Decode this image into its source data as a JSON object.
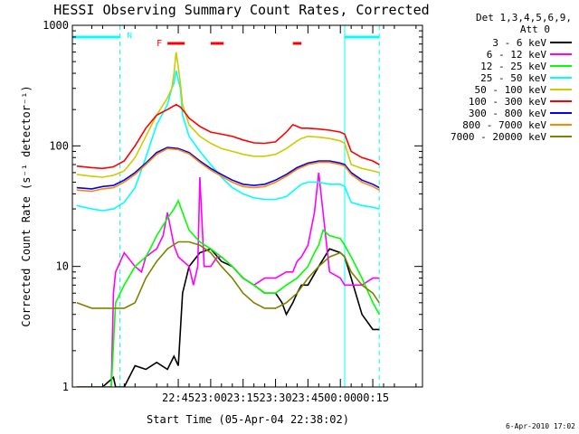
{
  "chart_data": {
    "type": "line",
    "title": "HESSI Observing Summary Count Rates, Corrected",
    "xlabel": "Start Time (05-Apr-04 22:38:02)",
    "ylabel": "Corrected Count Rate (s⁻¹ detector⁻¹)",
    "yscale": "log",
    "ylim": [
      1,
      1000
    ],
    "xlim_minutes": [
      -64,
      98
    ],
    "x_unit": "minutes relative to 23:00 UT (05-Apr-04)",
    "yticks": [
      {
        "label": "1",
        "value": 1
      },
      {
        "label": "10",
        "value": 10
      },
      {
        "label": "100",
        "value": 100
      },
      {
        "label": "1000",
        "value": 1000
      }
    ],
    "xticks": [
      {
        "label": "22:45",
        "value": -15
      },
      {
        "label": "23:00",
        "value": 0
      },
      {
        "label": "23:15",
        "value": 15
      },
      {
        "label": "23:30",
        "value": 30
      },
      {
        "label": "23:45",
        "value": 45
      },
      {
        "label": "00:00",
        "value": 60
      },
      {
        "label": "00:15",
        "value": 75
      }
    ],
    "legend_position": "right",
    "legend_header": [
      "Det 1,3,4,5,6,9,",
      "Att 0"
    ],
    "footer_date": "6-Apr-2010 17:02",
    "bars": {
      "night": {
        "label": "N",
        "color": "#00ffff",
        "ranges": [
          [
            -64,
            -42
          ],
          [
            62,
            78
          ]
        ]
      },
      "flare": {
        "label": "F",
        "color": "#ff0000",
        "ranges": [
          [
            -20,
            -12
          ],
          [
            0,
            6
          ],
          [
            38,
            42
          ]
        ]
      }
    },
    "vertical_lines": [
      {
        "x": -64,
        "style": "solid",
        "color": "#00ffff"
      },
      {
        "x": -42,
        "style": "dashed",
        "color": "#00ffff"
      },
      {
        "x": 62,
        "style": "solid",
        "color": "#00ffff"
      },
      {
        "x": 78,
        "style": "dashed",
        "color": "#00ffff"
      }
    ],
    "series": [
      {
        "name": "3 - 6 keV",
        "color": "#000000",
        "x": [
          -62,
          -50,
          -45,
          -44,
          -40,
          -35,
          -30,
          -25,
          -20,
          -17,
          -15,
          -13,
          -10,
          -5,
          0,
          5,
          10,
          15,
          20,
          25,
          30,
          33,
          35,
          38,
          40,
          42,
          45,
          50,
          55,
          60,
          62,
          65,
          70,
          75,
          78
        ],
        "y": [
          1,
          1,
          1.2,
          1,
          1,
          1.5,
          1.4,
          1.6,
          1.4,
          1.8,
          1.5,
          6,
          10,
          13,
          14,
          11,
          10,
          8,
          7,
          6,
          6,
          5,
          4,
          5,
          6,
          7,
          7,
          10,
          14,
          13,
          12,
          8,
          4,
          3,
          3
        ]
      },
      {
        "name": "6 - 12 keV",
        "color": "#ff00ff",
        "x": [
          -62,
          -46,
          -45,
          -44,
          -40,
          -35,
          -32,
          -30,
          -25,
          -22,
          -20,
          -17,
          -15,
          -10,
          -8,
          -6,
          -5,
          -3,
          0,
          3,
          5,
          10,
          15,
          20,
          25,
          30,
          35,
          38,
          40,
          42,
          45,
          48,
          50,
          55,
          60,
          62,
          65,
          70,
          75,
          78
        ],
        "y": [
          1,
          1,
          6,
          9,
          13,
          10,
          9,
          12,
          14,
          18,
          28,
          15,
          12,
          10,
          7,
          10,
          55,
          10,
          10,
          12,
          12,
          10,
          8,
          7,
          8,
          8,
          9,
          9,
          11,
          12,
          15,
          28,
          60,
          9,
          8,
          7,
          7,
          7,
          8,
          8
        ]
      },
      {
        "name": "12 - 25 keV",
        "color": "#00ff00",
        "x": [
          -62,
          -46,
          -44,
          -40,
          -35,
          -30,
          -28,
          -25,
          -20,
          -17,
          -15,
          -12,
          -10,
          -5,
          0,
          5,
          10,
          15,
          20,
          25,
          30,
          35,
          40,
          45,
          48,
          50,
          52,
          55,
          60,
          62,
          65,
          70,
          75,
          78
        ],
        "y": [
          1,
          1,
          5,
          7,
          10,
          12,
          14,
          18,
          25,
          30,
          35,
          25,
          20,
          16,
          14,
          12,
          10,
          8,
          7,
          6,
          6,
          7,
          8,
          10,
          13,
          15,
          20,
          18,
          17,
          15,
          12,
          8,
          5,
          4
        ]
      },
      {
        "name": "25 - 50 keV",
        "color": "#00ffff",
        "x": [
          -62,
          -55,
          -50,
          -45,
          -40,
          -35,
          -30,
          -25,
          -20,
          -18,
          -17,
          -16,
          -15,
          -14,
          -13,
          -10,
          -5,
          0,
          5,
          10,
          15,
          20,
          25,
          30,
          35,
          40,
          42,
          45,
          50,
          55,
          60,
          62,
          65,
          70,
          75,
          78
        ],
        "y": [
          32,
          30,
          29,
          30,
          34,
          45,
          80,
          150,
          220,
          300,
          330,
          420,
          350,
          300,
          180,
          120,
          90,
          70,
          55,
          45,
          40,
          37,
          36,
          36,
          38,
          45,
          48,
          50,
          50,
          48,
          48,
          46,
          34,
          32,
          31,
          30
        ]
      },
      {
        "name": "50 - 100 keV",
        "color": "#cccc00",
        "x": [
          -62,
          -55,
          -50,
          -45,
          -40,
          -35,
          -30,
          -25,
          -20,
          -18,
          -17,
          -16,
          -15,
          -14,
          -13,
          -10,
          -5,
          0,
          5,
          10,
          15,
          20,
          25,
          30,
          35,
          40,
          42,
          45,
          50,
          55,
          60,
          62,
          65,
          70,
          75,
          78
        ],
        "y": [
          58,
          56,
          55,
          57,
          62,
          80,
          120,
          180,
          250,
          300,
          400,
          600,
          450,
          330,
          220,
          150,
          120,
          105,
          95,
          90,
          85,
          82,
          82,
          85,
          95,
          110,
          115,
          120,
          118,
          115,
          110,
          105,
          70,
          65,
          62,
          60
        ]
      },
      {
        "name": "100 - 300 keV",
        "color": "#ff0000",
        "x": [
          -62,
          -55,
          -50,
          -45,
          -40,
          -35,
          -30,
          -25,
          -20,
          -18,
          -16,
          -14,
          -12,
          -10,
          -5,
          0,
          5,
          10,
          15,
          20,
          25,
          30,
          35,
          38,
          40,
          42,
          45,
          50,
          55,
          60,
          62,
          65,
          70,
          75,
          78
        ],
        "y": [
          68,
          66,
          65,
          67,
          75,
          100,
          140,
          180,
          200,
          210,
          220,
          210,
          190,
          170,
          145,
          130,
          125,
          120,
          112,
          106,
          105,
          108,
          130,
          150,
          145,
          140,
          140,
          138,
          135,
          130,
          125,
          90,
          80,
          75,
          70
        ]
      },
      {
        "name": "300 - 800 keV",
        "color": "#0000ff",
        "x": [
          -62,
          -55,
          -50,
          -45,
          -40,
          -35,
          -30,
          -25,
          -20,
          -15,
          -10,
          -5,
          0,
          5,
          10,
          15,
          20,
          25,
          30,
          35,
          40,
          45,
          50,
          55,
          60,
          62,
          65,
          70,
          75,
          78
        ],
        "y": [
          45,
          44,
          46,
          47,
          52,
          60,
          72,
          88,
          97,
          95,
          88,
          75,
          65,
          58,
          52,
          48,
          47,
          48,
          52,
          58,
          66,
          72,
          75,
          75,
          72,
          70,
          60,
          52,
          48,
          45
        ]
      },
      {
        "name": "800 - 7000 keV",
        "color": "#ff8800",
        "x": [
          -62,
          -55,
          -50,
          -45,
          -40,
          -35,
          -30,
          -25,
          -20,
          -15,
          -10,
          -5,
          0,
          5,
          10,
          15,
          20,
          25,
          30,
          35,
          40,
          45,
          50,
          55,
          60,
          62,
          65,
          70,
          75,
          78
        ],
        "y": [
          43,
          42,
          44,
          45,
          50,
          58,
          70,
          85,
          95,
          93,
          86,
          73,
          63,
          56,
          50,
          46,
          45,
          46,
          50,
          56,
          64,
          70,
          73,
          73,
          70,
          68,
          58,
          50,
          46,
          43
        ]
      },
      {
        "name": "7000 - 20000 keV",
        "color": "#808000",
        "x": [
          -62,
          -55,
          -50,
          -45,
          -40,
          -35,
          -30,
          -25,
          -20,
          -15,
          -10,
          -5,
          0,
          5,
          10,
          15,
          20,
          25,
          30,
          35,
          40,
          45,
          50,
          55,
          60,
          62,
          65,
          70,
          75,
          78
        ],
        "y": [
          5,
          4.5,
          4.5,
          4.5,
          4.5,
          5,
          8,
          11,
          14,
          16,
          16,
          15,
          13,
          10,
          8,
          6,
          5,
          4.5,
          4.5,
          5,
          6,
          8,
          10,
          12,
          13,
          12,
          9,
          7,
          6,
          5
        ]
      }
    ]
  }
}
